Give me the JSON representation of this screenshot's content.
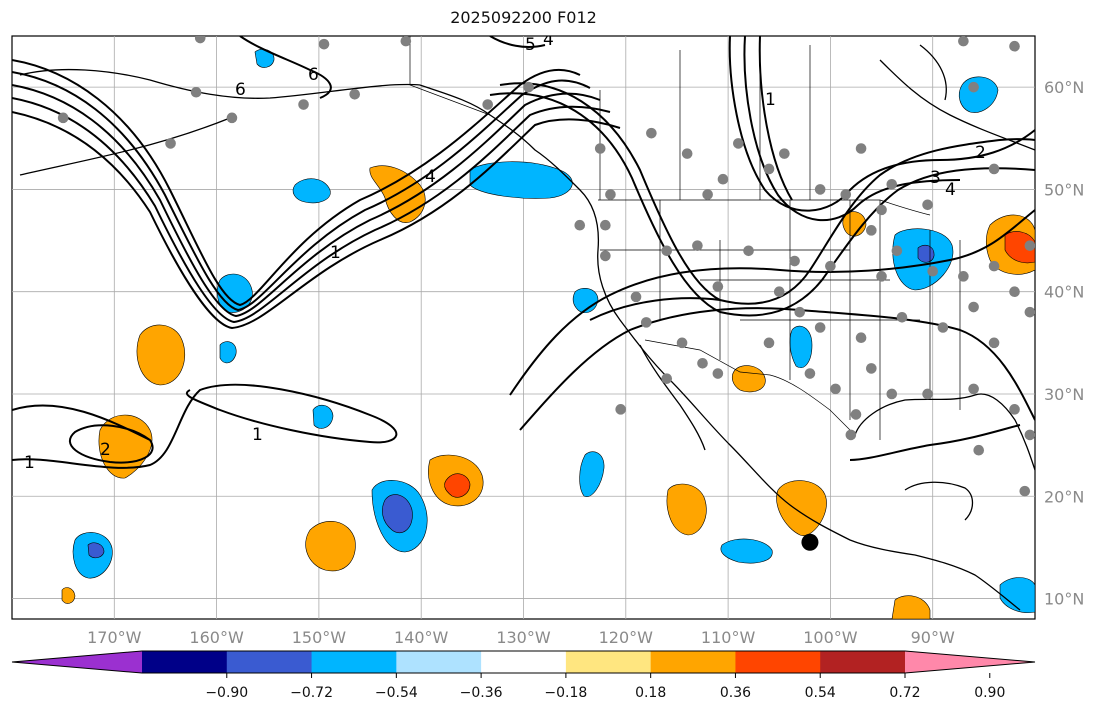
{
  "title": "2025092200 F012",
  "map": {
    "lon_range": [
      -180,
      -80
    ],
    "lat_range": [
      8,
      65
    ],
    "lat_labels": [
      "10°N",
      "20°N",
      "30°N",
      "40°N",
      "50°N",
      "60°N"
    ],
    "lat_values": [
      10,
      20,
      30,
      40,
      50,
      60
    ],
    "lon_labels": [
      "170°W",
      "160°W",
      "150°W",
      "140°W",
      "130°W",
      "120°W",
      "110°W",
      "100°W",
      "90°W"
    ],
    "lon_values": [
      -170,
      -160,
      -150,
      -140,
      -130,
      -120,
      -110,
      -100,
      -90
    ],
    "contour_labels": [
      "1",
      "1",
      "1",
      "2",
      "2",
      "4",
      "6",
      "6",
      "5",
      "4",
      "1",
      "3",
      "4"
    ],
    "marker": {
      "lon": -102,
      "lat": 15.5,
      "color": "#000000"
    }
  },
  "colorbar": {
    "ticks": [
      "−0.90",
      "−0.72",
      "−0.54",
      "−0.36",
      "−0.18",
      "0.18",
      "0.36",
      "0.54",
      "0.72",
      "0.90"
    ],
    "colors": [
      "#9b30d0",
      "#000088",
      "#3a5bd1",
      "#00b5ff",
      "#aee2ff",
      "#ffffff",
      "#ffe680",
      "#ffa500",
      "#ff4500",
      "#b22222",
      "#ff88aa"
    ],
    "extend": "both"
  },
  "colors": {
    "station": "#808080",
    "land_outline": "#000000",
    "grid": "#aaaaaa"
  }
}
